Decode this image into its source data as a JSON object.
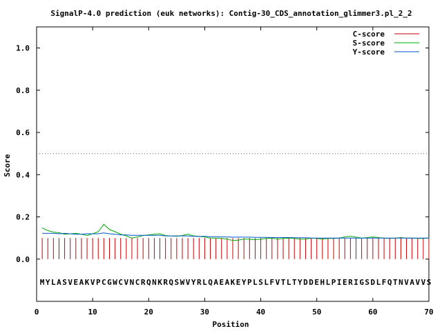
{
  "chart_data": {
    "type": "line",
    "title": "SignalP-4.0 prediction (euk networks): Contig-30_CDS_annotation_glimmer3.pl_2_2",
    "xlabel": "Position",
    "ylabel": "Score",
    "xlim": [
      0,
      70
    ],
    "ylim": [
      -0.2,
      1.1
    ],
    "xticks": [
      0,
      10,
      20,
      30,
      40,
      50,
      60,
      70
    ],
    "yticks": [
      0.0,
      0.2,
      0.4,
      0.6,
      0.8,
      1.0
    ],
    "ytick_labels": [
      "0.0",
      "0.2",
      "0.4",
      "0.6",
      "0.8",
      "1.0"
    ],
    "threshold": 0.5,
    "threshold_color": "#cc00cc",
    "grid": false,
    "legend_position": "top-right",
    "sequence": "MYLASVEAKVPCGWCVNCRQNKRQSWVYRLQAEAKEYPLSLFVTLTYDDEHLPIERIGSDLFQTNVAVVS",
    "x": [
      1,
      2,
      3,
      4,
      5,
      6,
      7,
      8,
      9,
      10,
      11,
      12,
      13,
      14,
      15,
      16,
      17,
      18,
      19,
      20,
      21,
      22,
      23,
      24,
      25,
      26,
      27,
      28,
      29,
      30,
      31,
      32,
      33,
      34,
      35,
      36,
      37,
      38,
      39,
      40,
      41,
      42,
      43,
      44,
      45,
      46,
      47,
      48,
      49,
      50,
      51,
      52,
      53,
      54,
      55,
      56,
      57,
      58,
      59,
      60,
      61,
      62,
      63,
      64,
      65,
      66,
      67,
      68,
      69,
      70
    ],
    "series": [
      {
        "name": "C-score",
        "color": "#cc0000",
        "style": "impulses",
        "values": [
          0.1,
          0.1,
          0.1,
          0.1,
          0.1,
          0.1,
          0.1,
          0.1,
          0.1,
          0.1,
          0.1,
          0.1,
          0.1,
          0.1,
          0.1,
          0.1,
          0.1,
          0.1,
          0.1,
          0.1,
          0.1,
          0.1,
          0.1,
          0.1,
          0.1,
          0.1,
          0.1,
          0.1,
          0.1,
          0.1,
          0.1,
          0.1,
          0.1,
          0.1,
          0.1,
          0.1,
          0.1,
          0.1,
          0.1,
          0.1,
          0.1,
          0.1,
          0.1,
          0.1,
          0.1,
          0.1,
          0.1,
          0.1,
          0.1,
          0.1,
          0.1,
          0.1,
          0.1,
          0.1,
          0.1,
          0.1,
          0.1,
          0.1,
          0.1,
          0.1,
          0.1,
          0.1,
          0.1,
          0.1,
          0.1,
          0.1,
          0.1,
          0.1,
          0.1,
          0.1
        ]
      },
      {
        "name": "S-score",
        "color": "#00aa00",
        "style": "line",
        "values": [
          0.148,
          0.135,
          0.128,
          0.125,
          0.118,
          0.12,
          0.122,
          0.118,
          0.112,
          0.12,
          0.13,
          0.165,
          0.14,
          0.13,
          0.118,
          0.11,
          0.1,
          0.105,
          0.112,
          0.115,
          0.118,
          0.12,
          0.112,
          0.11,
          0.108,
          0.112,
          0.118,
          0.11,
          0.108,
          0.105,
          0.1,
          0.1,
          0.098,
          0.095,
          0.088,
          0.09,
          0.095,
          0.095,
          0.092,
          0.095,
          0.098,
          0.1,
          0.095,
          0.098,
          0.1,
          0.098,
          0.095,
          0.095,
          0.1,
          0.098,
          0.095,
          0.098,
          0.098,
          0.1,
          0.105,
          0.108,
          0.104,
          0.1,
          0.102,
          0.105,
          0.102,
          0.1,
          0.098,
          0.1,
          0.102,
          0.1,
          0.1,
          0.098,
          0.098,
          0.1
        ]
      },
      {
        "name": "Y-score",
        "color": "#0055cc",
        "style": "line",
        "values": [
          0.122,
          0.122,
          0.122,
          0.12,
          0.122,
          0.12,
          0.118,
          0.118,
          0.12,
          0.12,
          0.12,
          0.124,
          0.12,
          0.118,
          0.115,
          0.115,
          0.113,
          0.113,
          0.113,
          0.113,
          0.113,
          0.113,
          0.11,
          0.11,
          0.11,
          0.11,
          0.11,
          0.108,
          0.108,
          0.108,
          0.106,
          0.106,
          0.105,
          0.105,
          0.104,
          0.104,
          0.104,
          0.104,
          0.103,
          0.103,
          0.103,
          0.102,
          0.102,
          0.102,
          0.102,
          0.101,
          0.101,
          0.101,
          0.1,
          0.1,
          0.1,
          0.1,
          0.1,
          0.1,
          0.1,
          0.1,
          0.1,
          0.1,
          0.1,
          0.1,
          0.1,
          0.1,
          0.1,
          0.1,
          0.1,
          0.1,
          0.1,
          0.1,
          0.1,
          0.1
        ]
      }
    ]
  }
}
